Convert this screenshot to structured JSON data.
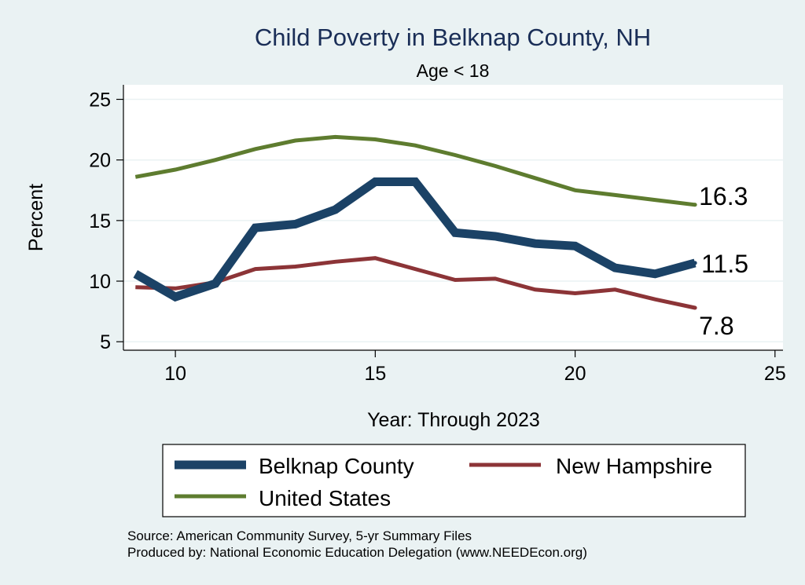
{
  "chart_data": {
    "type": "line",
    "title": "Child Poverty in Belknap County, NH",
    "subtitle": "Age < 18",
    "xlabel": "Year: Through 2023",
    "ylabel": "Percent",
    "xlim": [
      8.7,
      25.2
    ],
    "ylim": [
      4.3,
      26.2
    ],
    "xticks": [
      10,
      15,
      20,
      25
    ],
    "yticks": [
      5,
      10,
      15,
      20,
      25
    ],
    "grid": true,
    "legend_position": "bottom",
    "series": [
      {
        "name": "Belknap County",
        "color": "#1b4266",
        "style": "thick",
        "end_label": "11.5",
        "x": [
          9,
          10,
          11,
          12,
          13,
          14,
          15,
          16,
          17,
          18,
          19,
          20,
          21,
          22,
          23
        ],
        "values": [
          10.6,
          8.7,
          9.8,
          14.4,
          14.7,
          15.9,
          18.2,
          18.2,
          14.0,
          13.7,
          13.1,
          12.9,
          11.1,
          10.6,
          11.5
        ]
      },
      {
        "name": "New Hampshire",
        "color": "#8c3437",
        "style": "medium",
        "end_label": "7.8",
        "x": [
          9,
          10,
          11,
          12,
          13,
          14,
          15,
          16,
          17,
          18,
          19,
          20,
          21,
          22,
          23
        ],
        "values": [
          9.5,
          9.4,
          9.9,
          11.0,
          11.2,
          11.6,
          11.9,
          11.0,
          10.1,
          10.2,
          9.3,
          9.0,
          9.3,
          8.5,
          7.8
        ]
      },
      {
        "name": "United States",
        "color": "#5e7c2f",
        "style": "medium",
        "end_label": "16.3",
        "x": [
          9,
          10,
          11,
          12,
          13,
          14,
          15,
          16,
          17,
          18,
          19,
          20,
          21,
          22,
          23
        ],
        "values": [
          18.6,
          19.2,
          20.0,
          20.9,
          21.6,
          21.9,
          21.7,
          21.2,
          20.4,
          19.5,
          18.5,
          17.5,
          17.1,
          16.7,
          16.3
        ]
      }
    ],
    "source_lines": [
      "Source: American Community Survey, 5-yr Summary Files",
      "Produced by: National Economic Education Delegation (www.NEEDEcon.org)"
    ]
  }
}
